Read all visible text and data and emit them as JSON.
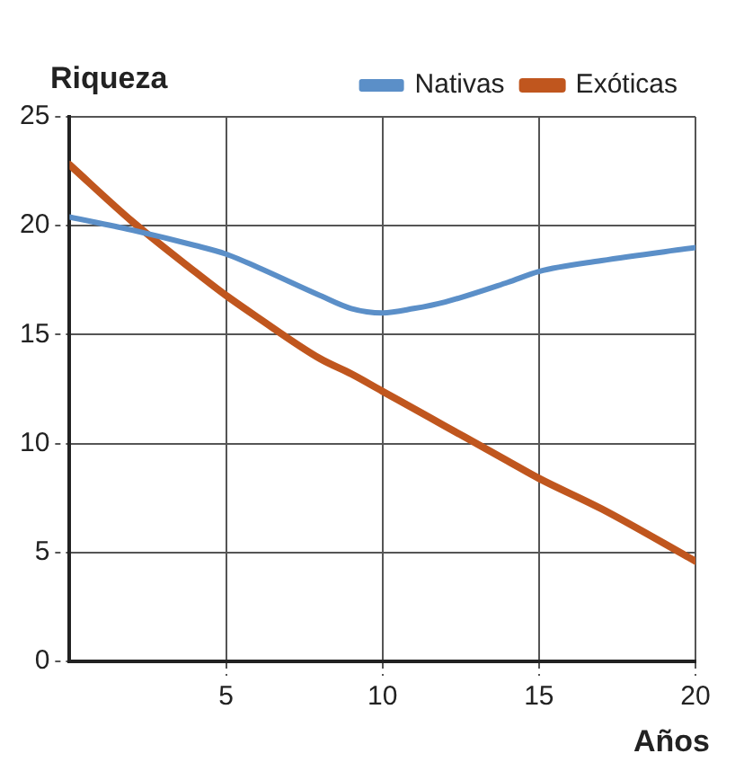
{
  "chart_data": {
    "type": "line",
    "xlabel": "Años",
    "ylabel": "Riqueza",
    "x": [
      0,
      2,
      4,
      5,
      6,
      8,
      9,
      10,
      11,
      12,
      14,
      15,
      17,
      20
    ],
    "series": [
      {
        "name": "Nativas",
        "color": "#5b8fc8",
        "values": [
          20.4,
          19.8,
          19.1,
          18.7,
          18.1,
          16.8,
          16.2,
          16.0,
          16.2,
          16.5,
          17.4,
          17.9,
          18.4,
          19.0
        ]
      },
      {
        "name": "Exóticas",
        "color": "#c0561e",
        "values": [
          22.8,
          20.2,
          17.9,
          16.8,
          15.8,
          13.9,
          13.2,
          12.4,
          11.6,
          10.8,
          9.2,
          8.4,
          7.0,
          4.6
        ]
      }
    ],
    "xlim": [
      0,
      20
    ],
    "xticks": [
      5,
      10,
      15,
      20
    ],
    "ylim": [
      0,
      25
    ],
    "yticks": [
      0,
      5,
      10,
      15,
      20,
      25
    ],
    "grid": true,
    "legend": "top right",
    "marker": "none",
    "line_style": "solid"
  }
}
